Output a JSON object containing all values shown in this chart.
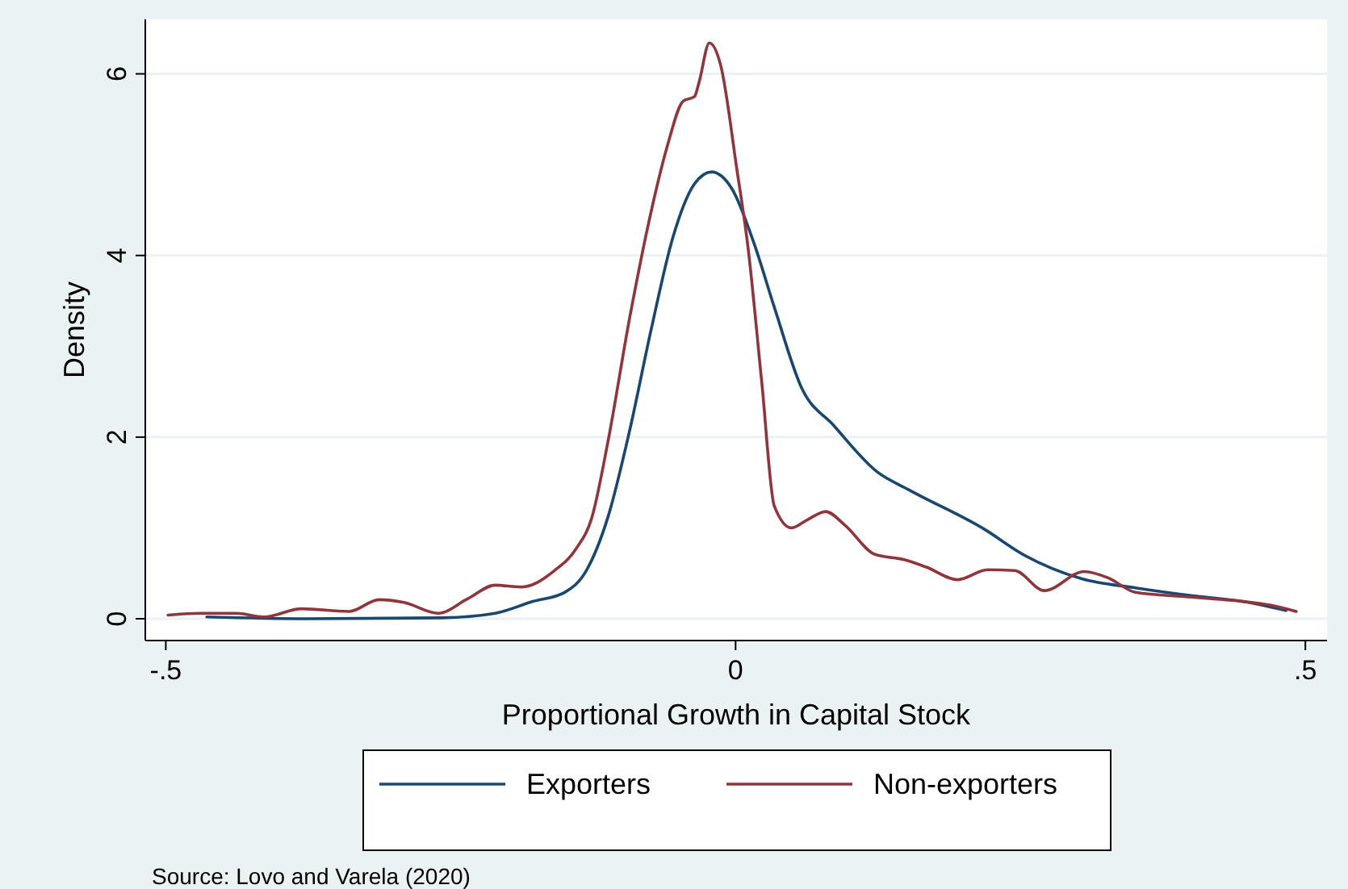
{
  "chart_data": {
    "type": "line",
    "xlabel": "Proportional Growth in Capital Stock",
    "ylabel": "Density",
    "xlim": [
      -0.518,
      0.519
    ],
    "ylim": [
      -0.24,
      6.6
    ],
    "xticks": [
      {
        "value": -0.5,
        "label": "-.5"
      },
      0,
      {
        "value": 0.5,
        "label": ".5"
      }
    ],
    "yticks": [
      0,
      2,
      4,
      6
    ],
    "grid": "y",
    "legend": "bottom",
    "line_style": "solid",
    "marker": "none",
    "annotations": [
      "Source: Lovo and Varela (2020)"
    ],
    "series": [
      {
        "name": "Exporters",
        "color": "#1a476f",
        "x": [
          -0.464,
          -0.376,
          -0.258,
          -0.211,
          -0.178,
          -0.15,
          -0.131,
          -0.112,
          -0.093,
          -0.074,
          -0.055,
          -0.036,
          -0.021,
          -0.003,
          0.016,
          0.034,
          0.058,
          0.086,
          0.124,
          0.152,
          0.219,
          0.252,
          0.304,
          0.351,
          0.403,
          0.445,
          0.483
        ],
        "values": [
          0.02,
          0.0,
          0.01,
          0.06,
          0.19,
          0.29,
          0.53,
          1.12,
          2.07,
          3.19,
          4.2,
          4.79,
          4.92,
          4.73,
          4.14,
          3.43,
          2.54,
          2.13,
          1.62,
          1.42,
          0.98,
          0.71,
          0.44,
          0.34,
          0.25,
          0.19,
          0.09
        ]
      },
      {
        "name": "Non-exporters",
        "color": "#90353b",
        "x": [
          -0.498,
          -0.471,
          -0.438,
          -0.414,
          -0.381,
          -0.339,
          -0.313,
          -0.291,
          -0.261,
          -0.235,
          -0.211,
          -0.188,
          -0.159,
          -0.14,
          -0.126,
          -0.112,
          -0.093,
          -0.074,
          -0.06,
          -0.046,
          -0.036,
          -0.032,
          -0.023,
          -0.013,
          0.001,
          0.011,
          0.023,
          0.034,
          0.049,
          0.063,
          0.079,
          0.096,
          0.122,
          0.148,
          0.167,
          0.195,
          0.221,
          0.245,
          0.271,
          0.306,
          0.327,
          0.351,
          0.398,
          0.445,
          0.469,
          0.492
        ],
        "values": [
          0.04,
          0.06,
          0.06,
          0.02,
          0.11,
          0.08,
          0.21,
          0.18,
          0.06,
          0.22,
          0.37,
          0.35,
          0.53,
          0.77,
          1.12,
          1.95,
          3.31,
          4.49,
          5.2,
          5.7,
          5.75,
          5.91,
          6.34,
          6.09,
          4.96,
          4.08,
          2.6,
          1.24,
          1.0,
          1.09,
          1.18,
          1.03,
          0.71,
          0.65,
          0.57,
          0.43,
          0.54,
          0.53,
          0.31,
          0.52,
          0.45,
          0.29,
          0.24,
          0.19,
          0.15,
          0.08
        ]
      }
    ]
  }
}
